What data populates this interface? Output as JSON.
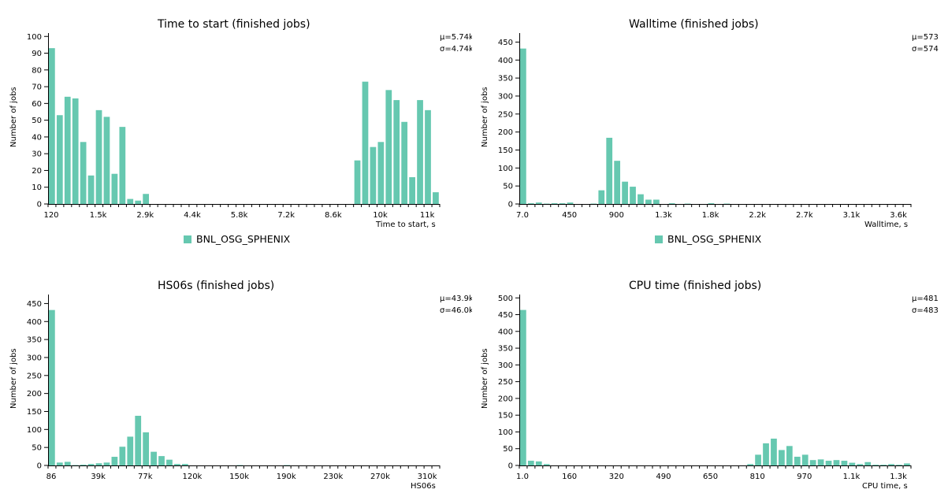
{
  "colors": {
    "bar": "#66c8b0",
    "axis": "#000000"
  },
  "legend_label": "BNL_OSG_SPHENIX",
  "chart_data": [
    {
      "type": "bar",
      "title": "Time to start (finished jobs)",
      "xlabel": "Time to start, s",
      "ylabel": "Number of jobs",
      "stats": [
        "μ=5.74k",
        "σ=4.74k"
      ],
      "legend": [
        "BNL_OSG_SPHENIX"
      ],
      "ylim": [
        0,
        102
      ],
      "yticks": [
        0,
        10,
        20,
        30,
        40,
        50,
        60,
        70,
        80,
        90,
        100
      ],
      "xtick_labels": [
        "120",
        "1.5k",
        "2.9k",
        "4.4k",
        "5.8k",
        "7.2k",
        "8.6k",
        "10k",
        "11k"
      ],
      "values": [
        93,
        53,
        64,
        63,
        37,
        17,
        56,
        52,
        18,
        46,
        3,
        2,
        6,
        0,
        0,
        0,
        0,
        0,
        0,
        0,
        0,
        0,
        0,
        0,
        0,
        0,
        0,
        0,
        0,
        0,
        0,
        0,
        0,
        0,
        0,
        0,
        0,
        0,
        0,
        26,
        73,
        34,
        37,
        68,
        62,
        49,
        16,
        62,
        56,
        7
      ]
    },
    {
      "type": "bar",
      "title": "Walltime (finished jobs)",
      "xlabel": "Walltime, s",
      "ylabel": "Number of jobs",
      "stats": [
        "μ=573",
        "σ=574"
      ],
      "legend": [
        "BNL_OSG_SPHENIX"
      ],
      "ylim": [
        0,
        475
      ],
      "yticks": [
        0,
        50,
        100,
        150,
        200,
        250,
        300,
        350,
        400,
        450
      ],
      "xtick_labels": [
        "7.0",
        "450",
        "900",
        "1.3k",
        "1.8k",
        "2.2k",
        "2.7k",
        "3.1k",
        "3.6k"
      ],
      "values": [
        432,
        2,
        4,
        1,
        2,
        2,
        4,
        0,
        0,
        1,
        38,
        184,
        120,
        62,
        48,
        27,
        12,
        12,
        0,
        2,
        0,
        1,
        0,
        0,
        2,
        0,
        1,
        0,
        0,
        0,
        0,
        0,
        0,
        0,
        0,
        0,
        0,
        0,
        0,
        0,
        0,
        0,
        0,
        0,
        0,
        0,
        0,
        0,
        0,
        0
      ]
    },
    {
      "type": "bar",
      "title": "HS06s (finished jobs)",
      "xlabel": "HS06s",
      "ylabel": "Number of jobs",
      "stats": [
        "μ=43.9k",
        "σ=46.0k"
      ],
      "ylim": [
        0,
        475
      ],
      "yticks": [
        0,
        50,
        100,
        150,
        200,
        250,
        300,
        350,
        400,
        450
      ],
      "xtick_labels": [
        "86",
        "39k",
        "77k",
        "120k",
        "150k",
        "190k",
        "230k",
        "270k",
        "310k"
      ],
      "values": [
        432,
        8,
        10,
        1,
        2,
        4,
        6,
        8,
        24,
        52,
        80,
        138,
        92,
        38,
        26,
        16,
        4,
        4,
        0,
        0,
        0,
        0,
        0,
        0,
        1,
        0,
        0,
        0,
        0,
        0,
        1,
        0,
        0,
        0,
        0,
        0,
        0,
        0,
        0,
        0,
        0,
        0,
        0,
        0,
        0,
        0,
        0,
        0,
        0,
        0
      ]
    },
    {
      "type": "bar",
      "title": "CPU time (finished jobs)",
      "xlabel": "CPU time, s",
      "ylabel": "Number of jobs",
      "stats": [
        "μ=481",
        "σ=483"
      ],
      "ylim": [
        0,
        510
      ],
      "yticks": [
        0,
        50,
        100,
        150,
        200,
        250,
        300,
        350,
        400,
        450,
        500
      ],
      "xtick_labels": [
        "1.0",
        "160",
        "320",
        "490",
        "650",
        "810",
        "970",
        "1.1k",
        "1.3k"
      ],
      "values": [
        464,
        14,
        12,
        4,
        0,
        0,
        0,
        0,
        0,
        0,
        0,
        0,
        0,
        0,
        0,
        0,
        0,
        0,
        0,
        0,
        0,
        0,
        0,
        0,
        0,
        0,
        0,
        0,
        0,
        4,
        32,
        66,
        80,
        46,
        58,
        26,
        32,
        16,
        18,
        14,
        16,
        14,
        8,
        4,
        10,
        2,
        2,
        4,
        2,
        6
      ]
    }
  ]
}
